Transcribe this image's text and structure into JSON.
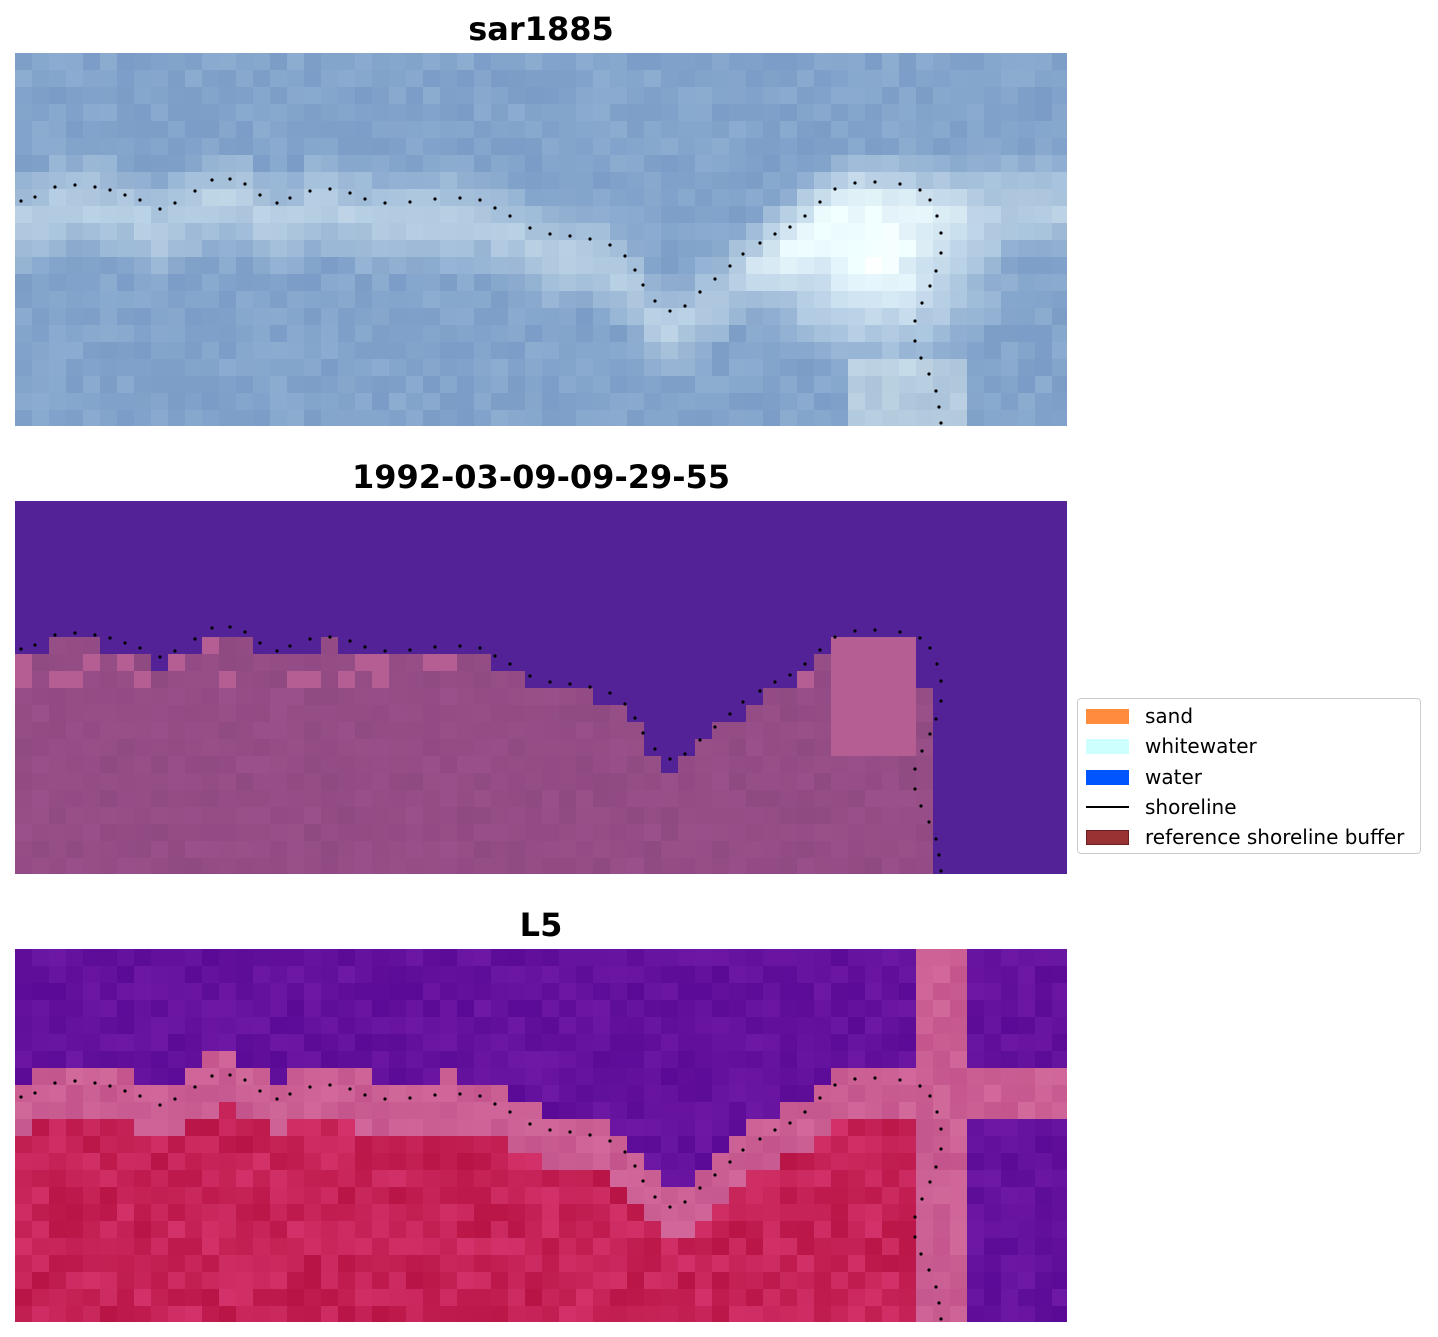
{
  "panels": [
    {
      "title": "sar1885",
      "kind": "sar"
    },
    {
      "title": "1992-03-09-09-29-55",
      "kind": "classification"
    },
    {
      "title": "L5",
      "kind": "index"
    }
  ],
  "legend": {
    "items": [
      {
        "label": "sand",
        "color": "#ff8c3c",
        "type": "patch",
        "icon": "sand-swatch"
      },
      {
        "label": "whitewater",
        "color": "#ccfffe",
        "type": "patch",
        "icon": "whitewater-swatch"
      },
      {
        "label": "water",
        "color": "#0055ff",
        "type": "patch",
        "icon": "water-swatch"
      },
      {
        "label": "shoreline",
        "color": "#000000",
        "type": "line",
        "icon": "shoreline-line"
      },
      {
        "label": "reference shoreline buffer",
        "color": "#993333",
        "type": "patch",
        "icon": "buffer-swatch"
      }
    ]
  },
  "colors": {
    "water_class": "#532296",
    "land_class": "#904a82",
    "land_class_light": "#b55e94",
    "index_water": "#5a0f9a",
    "index_land": "#c31c4e",
    "index_transition": "#c55c8e",
    "sar_base": "#7d9dc7",
    "sar_bright": "#c7dcee",
    "shoreline": "#000000"
  }
}
